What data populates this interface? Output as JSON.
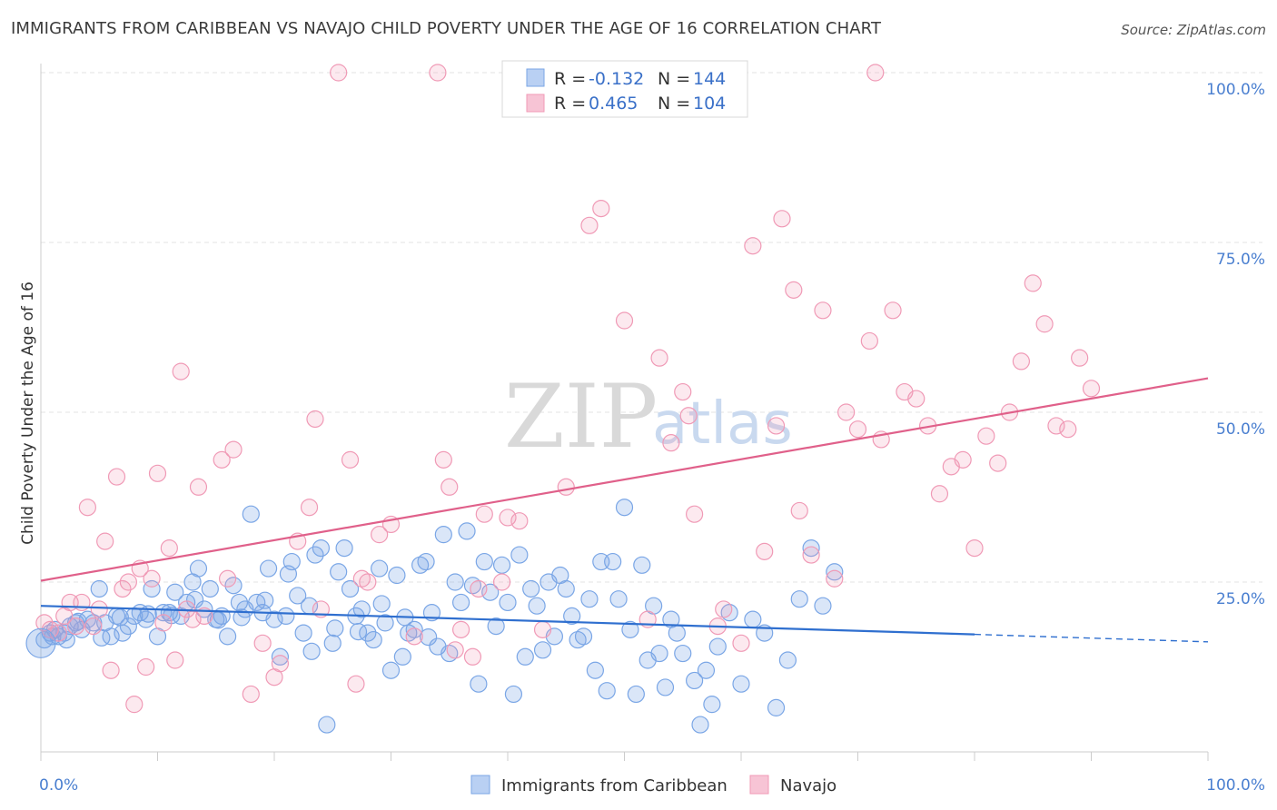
{
  "title": "IMMIGRANTS FROM CARIBBEAN VS NAVAJO CHILD POVERTY UNDER THE AGE OF 16 CORRELATION CHART",
  "source": "Source: ZipAtlas.com",
  "watermark": {
    "zip": "ZIP",
    "atlas": "atlas"
  },
  "colors": {
    "blue": "#7aa6e6",
    "blue_line": "#2f6fcf",
    "pink": "#f09ab6",
    "pink_line": "#e0608a",
    "tick": "#4a7fd0"
  },
  "chart_data": {
    "type": "scatter",
    "title": "IMMIGRANTS FROM CARIBBEAN VS NAVAJO CHILD POVERTY UNDER THE AGE OF 16 CORRELATION CHART",
    "xlabel": "",
    "ylabel": "Child Poverty Under the Age of 16",
    "xlim": [
      0,
      100
    ],
    "ylim": [
      0,
      100
    ],
    "x_tick_labels": [
      "0.0%",
      "100.0%"
    ],
    "y_ticks": [
      25,
      50,
      75,
      100
    ],
    "y_tick_labels": [
      "25.0%",
      "50.0%",
      "75.0%",
      "100.0%"
    ],
    "grid": true,
    "legend_placement": "top-center",
    "legend": [
      {
        "r_label": "R =",
        "r_value": "-0.132",
        "n_label": "N =",
        "n_value": "144"
      },
      {
        "r_label": "R =",
        "r_value": "0.465",
        "n_label": "N =",
        "n_value": "104"
      }
    ],
    "series": [
      {
        "name": "Immigrants from Caribbean",
        "color": "#7aa6e6",
        "trend": {
          "x0": 0,
          "y0": 21.5,
          "x1": 80,
          "y1": 17.3,
          "dashed_to_x": 100,
          "dashed_to_y": 16.2
        },
        "points": [
          [
            0.3,
            16.5
          ],
          [
            0.8,
            17.5
          ],
          [
            1.2,
            18.0
          ],
          [
            1.5,
            17.0
          ],
          [
            2.0,
            17.5
          ],
          [
            2.5,
            18.5
          ],
          [
            3.0,
            19.0
          ],
          [
            3.5,
            18.0
          ],
          [
            4.0,
            19.5
          ],
          [
            4.5,
            19.0
          ],
          [
            5.0,
            24.0
          ],
          [
            5.5,
            19.0
          ],
          [
            6.0,
            17.0
          ],
          [
            6.5,
            20.0
          ],
          [
            7.0,
            17.5
          ],
          [
            7.5,
            18.5
          ],
          [
            8.0,
            20.0
          ],
          [
            8.5,
            20.5
          ],
          [
            9.0,
            19.5
          ],
          [
            9.5,
            24.0
          ],
          [
            10.0,
            17.0
          ],
          [
            10.5,
            20.5
          ],
          [
            11.0,
            20.5
          ],
          [
            11.5,
            23.5
          ],
          [
            12.0,
            20.0
          ],
          [
            12.5,
            22.0
          ],
          [
            13.0,
            25.0
          ],
          [
            13.5,
            27.0
          ],
          [
            14.0,
            21.0
          ],
          [
            14.5,
            24.0
          ],
          [
            15.0,
            19.5
          ],
          [
            15.5,
            20.0
          ],
          [
            16.0,
            17.0
          ],
          [
            16.5,
            24.5
          ],
          [
            17.0,
            22.0
          ],
          [
            17.5,
            21.0
          ],
          [
            18.0,
            35.0
          ],
          [
            18.5,
            22.0
          ],
          [
            19.0,
            20.5
          ],
          [
            19.5,
            27.0
          ],
          [
            20.0,
            19.5
          ],
          [
            20.5,
            14.0
          ],
          [
            21.0,
            20.0
          ],
          [
            21.5,
            28.0
          ],
          [
            22.0,
            23.0
          ],
          [
            22.5,
            17.5
          ],
          [
            23.0,
            21.5
          ],
          [
            23.5,
            29.0
          ],
          [
            24.0,
            30.0
          ],
          [
            24.5,
            4.0
          ],
          [
            25.0,
            16.0
          ],
          [
            25.5,
            26.5
          ],
          [
            26.0,
            30.0
          ],
          [
            26.5,
            24.0
          ],
          [
            27.0,
            20.0
          ],
          [
            27.5,
            21.0
          ],
          [
            28.0,
            17.5
          ],
          [
            28.5,
            16.5
          ],
          [
            29.0,
            27.0
          ],
          [
            29.5,
            19.0
          ],
          [
            30.0,
            12.0
          ],
          [
            30.5,
            26.0
          ],
          [
            31.0,
            14.0
          ],
          [
            31.5,
            17.5
          ],
          [
            32.0,
            18.0
          ],
          [
            32.5,
            27.5
          ],
          [
            33.0,
            28.0
          ],
          [
            33.5,
            20.5
          ],
          [
            34.0,
            15.5
          ],
          [
            34.5,
            32.0
          ],
          [
            35.0,
            14.5
          ],
          [
            35.5,
            25.0
          ],
          [
            36.0,
            22.0
          ],
          [
            36.5,
            32.5
          ],
          [
            37.0,
            24.5
          ],
          [
            37.5,
            10.0
          ],
          [
            38.0,
            28.0
          ],
          [
            38.5,
            23.5
          ],
          [
            39.0,
            18.5
          ],
          [
            39.5,
            27.5
          ],
          [
            40.0,
            22.0
          ],
          [
            40.5,
            8.5
          ],
          [
            41.0,
            29.0
          ],
          [
            41.5,
            14.0
          ],
          [
            42.0,
            24.0
          ],
          [
            42.5,
            21.5
          ],
          [
            43.0,
            15.0
          ],
          [
            43.5,
            25.0
          ],
          [
            44.0,
            17.0
          ],
          [
            44.5,
            26.0
          ],
          [
            45.0,
            24.0
          ],
          [
            45.5,
            20.0
          ],
          [
            46.0,
            16.5
          ],
          [
            46.5,
            17.0
          ],
          [
            47.0,
            22.5
          ],
          [
            47.5,
            12.0
          ],
          [
            48.0,
            28.0
          ],
          [
            48.5,
            9.0
          ],
          [
            49.0,
            28.0
          ],
          [
            49.5,
            22.5
          ],
          [
            50.0,
            36.0
          ],
          [
            50.5,
            18.0
          ],
          [
            51.0,
            8.5
          ],
          [
            51.5,
            27.5
          ],
          [
            52.0,
            13.5
          ],
          [
            52.5,
            21.5
          ],
          [
            53.0,
            14.5
          ],
          [
            53.5,
            9.5
          ],
          [
            54.0,
            19.5
          ],
          [
            54.5,
            17.5
          ],
          [
            55.0,
            14.5
          ],
          [
            56.0,
            10.5
          ],
          [
            56.5,
            4.0
          ],
          [
            57.0,
            12.0
          ],
          [
            57.5,
            7.0
          ],
          [
            58.0,
            15.5
          ],
          [
            59.0,
            20.5
          ],
          [
            60.0,
            10.0
          ],
          [
            61.0,
            19.5
          ],
          [
            62.0,
            17.5
          ],
          [
            63.0,
            6.5
          ],
          [
            64.0,
            13.5
          ],
          [
            65.0,
            22.5
          ],
          [
            66.0,
            30.0
          ],
          [
            67.0,
            21.5
          ],
          [
            68.0,
            26.5
          ],
          [
            1.0,
            17.0
          ],
          [
            2.2,
            16.5
          ],
          [
            3.2,
            19.2
          ],
          [
            5.2,
            16.8
          ],
          [
            6.8,
            19.8
          ],
          [
            9.2,
            20.3
          ],
          [
            11.2,
            20.1
          ],
          [
            13.2,
            22.4
          ],
          [
            15.2,
            19.4
          ],
          [
            17.2,
            19.8
          ],
          [
            19.2,
            22.3
          ],
          [
            21.2,
            26.2
          ],
          [
            23.2,
            14.8
          ],
          [
            25.2,
            18.2
          ],
          [
            27.2,
            17.7
          ],
          [
            29.2,
            21.8
          ],
          [
            31.2,
            19.8
          ],
          [
            33.2,
            16.9
          ]
        ]
      },
      {
        "name": "Navajo",
        "color": "#f09ab6",
        "trend": {
          "x0": 0,
          "y0": 25.2,
          "x1": 100,
          "y1": 55.0
        },
        "points": [
          [
            0.3,
            19.0
          ],
          [
            0.8,
            18.0
          ],
          [
            1.5,
            17.5
          ],
          [
            2.0,
            20.0
          ],
          [
            2.5,
            22.0
          ],
          [
            3.0,
            18.5
          ],
          [
            3.5,
            22.0
          ],
          [
            4.0,
            36.0
          ],
          [
            4.5,
            18.5
          ],
          [
            5.0,
            21.0
          ],
          [
            5.5,
            31.0
          ],
          [
            6.0,
            12.0
          ],
          [
            6.5,
            40.5
          ],
          [
            7.0,
            24.0
          ],
          [
            7.5,
            25.0
          ],
          [
            8.0,
            7.0
          ],
          [
            8.5,
            27.0
          ],
          [
            9.0,
            12.5
          ],
          [
            9.5,
            25.5
          ],
          [
            10.0,
            41.0
          ],
          [
            10.5,
            19.0
          ],
          [
            11.0,
            30.0
          ],
          [
            11.5,
            13.5
          ],
          [
            12.0,
            56.0
          ],
          [
            12.5,
            21.0
          ],
          [
            13.0,
            19.5
          ],
          [
            13.5,
            39.0
          ],
          [
            14.0,
            20.0
          ],
          [
            15.5,
            43.0
          ],
          [
            16.0,
            25.5
          ],
          [
            16.5,
            44.5
          ],
          [
            18.0,
            8.5
          ],
          [
            19.0,
            16.0
          ],
          [
            20.0,
            11.0
          ],
          [
            20.5,
            13.0
          ],
          [
            22.0,
            31.0
          ],
          [
            23.0,
            36.0
          ],
          [
            23.5,
            49.0
          ],
          [
            24.0,
            21.0
          ],
          [
            25.5,
            100.0
          ],
          [
            26.5,
            43.0
          ],
          [
            27.0,
            10.0
          ],
          [
            27.5,
            25.5
          ],
          [
            28.0,
            25.0
          ],
          [
            29.0,
            32.0
          ],
          [
            30.0,
            33.5
          ],
          [
            32.0,
            17.0
          ],
          [
            34.0,
            100.0
          ],
          [
            34.5,
            43.0
          ],
          [
            35.0,
            39.0
          ],
          [
            35.5,
            15.0
          ],
          [
            36.0,
            18.0
          ],
          [
            37.0,
            14.0
          ],
          [
            37.5,
            24.0
          ],
          [
            38.0,
            35.0
          ],
          [
            39.5,
            25.0
          ],
          [
            40.0,
            34.5
          ],
          [
            41.0,
            34.0
          ],
          [
            43.0,
            18.0
          ],
          [
            45.0,
            39.0
          ],
          [
            47.0,
            77.5
          ],
          [
            48.0,
            80.0
          ],
          [
            50.0,
            63.5
          ],
          [
            52.0,
            19.5
          ],
          [
            53.0,
            58.0
          ],
          [
            54.0,
            45.5
          ],
          [
            55.0,
            53.0
          ],
          [
            55.5,
            49.5
          ],
          [
            56.0,
            35.0
          ],
          [
            58.0,
            18.5
          ],
          [
            58.5,
            21.0
          ],
          [
            60.0,
            16.0
          ],
          [
            61.0,
            74.5
          ],
          [
            62.0,
            29.5
          ],
          [
            63.0,
            48.0
          ],
          [
            63.5,
            78.5
          ],
          [
            64.5,
            68.0
          ],
          [
            65.0,
            35.5
          ],
          [
            66.0,
            29.0
          ],
          [
            67.0,
            65.0
          ],
          [
            68.0,
            25.5
          ],
          [
            69.0,
            50.0
          ],
          [
            70.0,
            47.5
          ],
          [
            71.0,
            60.5
          ],
          [
            72.0,
            46.0
          ],
          [
            73.0,
            65.0
          ],
          [
            74.0,
            53.0
          ],
          [
            75.0,
            52.0
          ],
          [
            76.0,
            48.0
          ],
          [
            77.0,
            38.0
          ],
          [
            78.0,
            42.0
          ],
          [
            79.0,
            43.0
          ],
          [
            80.0,
            30.0
          ],
          [
            81.0,
            46.5
          ],
          [
            82.0,
            42.5
          ],
          [
            83.0,
            50.0
          ],
          [
            84.0,
            57.5
          ],
          [
            85.0,
            69.0
          ],
          [
            86.0,
            63.0
          ],
          [
            87.0,
            48.0
          ],
          [
            88.0,
            47.5
          ],
          [
            89.0,
            58.0
          ],
          [
            90.0,
            53.5
          ],
          [
            71.5,
            100.0
          ]
        ]
      }
    ]
  },
  "bottom_legend": [
    {
      "label": "Immigrants from Caribbean"
    },
    {
      "label": "Navajo"
    }
  ]
}
